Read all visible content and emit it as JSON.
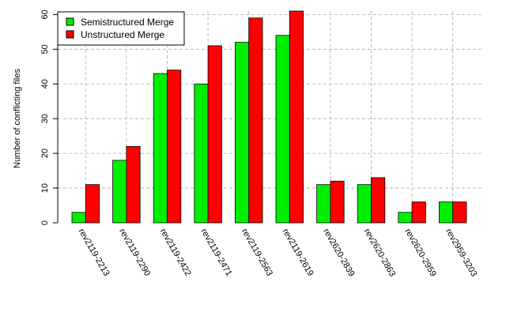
{
  "chart_data": {
    "type": "bar",
    "title": "",
    "xlabel": "",
    "ylabel": "Number of conflicting files",
    "ylim": [
      0,
      61
    ],
    "yticks": [
      0,
      10,
      20,
      30,
      40,
      50,
      60
    ],
    "grid": true,
    "legend_position": "top-left",
    "categories": [
      "rev2119-2213",
      "rev2119-2290",
      "rev2119-2422",
      "rev2119-2471",
      "rev2119-2563",
      "rev2119-2619",
      "rev2620-2839",
      "rev2620-2863",
      "rev2620-2959",
      "rev2959-3203"
    ],
    "series": [
      {
        "name": "Semistructured Merge",
        "color": "#00ee00",
        "values": [
          3,
          18,
          43,
          40,
          52,
          54,
          11,
          11,
          3,
          6
        ]
      },
      {
        "name": "Unstructured Merge",
        "color": "#ff0000",
        "values": [
          11,
          22,
          44,
          51,
          59,
          61,
          12,
          13,
          6,
          6
        ]
      }
    ]
  }
}
